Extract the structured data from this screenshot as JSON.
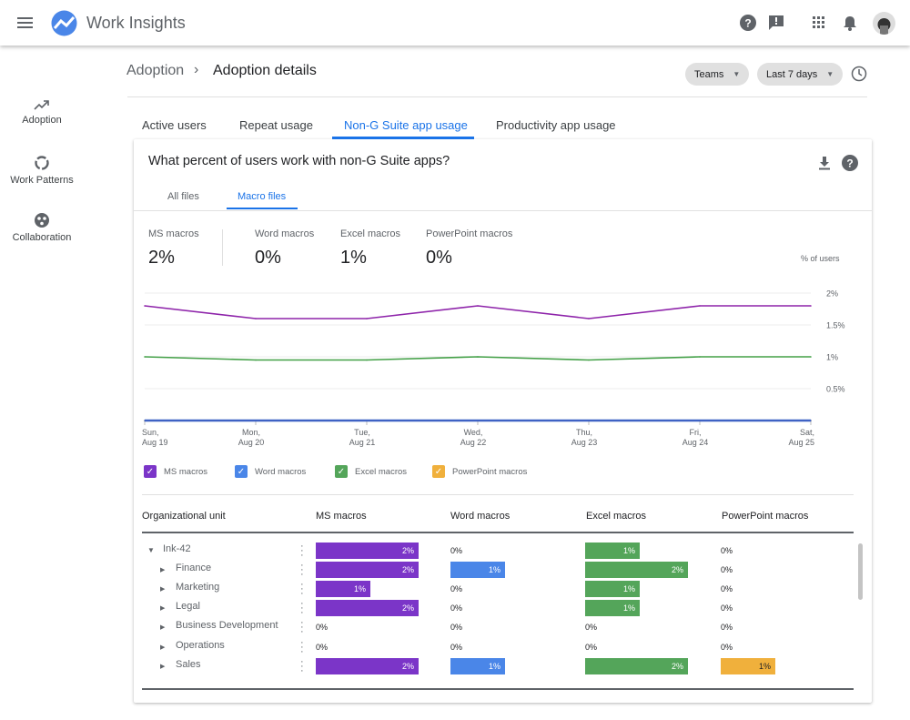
{
  "app": {
    "title": "Work Insights"
  },
  "sidebar": {
    "items": [
      {
        "label": "Adoption",
        "icon": "trending-up-icon"
      },
      {
        "label": "Work Patterns",
        "icon": "circle-progress-icon"
      },
      {
        "label": "Collaboration",
        "icon": "collaboration-icon"
      }
    ]
  },
  "breadcrumb": {
    "parent": "Adoption",
    "current": "Adoption details"
  },
  "filters": {
    "group": "Teams",
    "range": "Last 7 days"
  },
  "tabs": [
    {
      "label": "Active users"
    },
    {
      "label": "Repeat usage"
    },
    {
      "label": "Non-G Suite app usage",
      "active": true
    },
    {
      "label": "Productivity app usage"
    }
  ],
  "card": {
    "title": "What percent of users work with non-G Suite apps?",
    "subtabs": [
      {
        "label": "All files"
      },
      {
        "label": "Macro files",
        "active": true
      }
    ]
  },
  "stats": [
    {
      "label": "MS macros",
      "value": "2%"
    },
    {
      "label": "Word macros",
      "value": "0%"
    },
    {
      "label": "Excel macros",
      "value": "1%"
    },
    {
      "label": "PowerPoint macros",
      "value": "0%"
    }
  ],
  "colors": {
    "ms": "#7b35c8",
    "word": "#4a86e8",
    "excel": "#54a55a",
    "ppt": "#f0b03c",
    "accent": "#1a73e8"
  },
  "chart_data": {
    "type": "line",
    "ylabel": "% of users",
    "x": [
      "Sun, Aug 19",
      "Mon, Aug 20",
      "Tue, Aug 21",
      "Wed, Aug 22",
      "Thu, Aug 23",
      "Fri, Aug 24",
      "Sat, Aug 25"
    ],
    "x_ticks": [
      [
        "Sun,",
        "Aug 19"
      ],
      [
        "Mon,",
        "Aug 20"
      ],
      [
        "Tue,",
        "Aug 21"
      ],
      [
        "Wed,",
        "Aug 22"
      ],
      [
        "Thu,",
        "Aug 23"
      ],
      [
        "Fri,",
        "Aug 24"
      ],
      [
        "Sat,",
        "Aug 25"
      ]
    ],
    "y_ticks": [
      {
        "v": 2,
        "label": "2%"
      },
      {
        "v": 1.5,
        "label": "1.5%"
      },
      {
        "v": 1,
        "label": "1%"
      },
      {
        "v": 0.5,
        "label": "0.5%"
      }
    ],
    "ylim": [
      0,
      2
    ],
    "grid": true,
    "legend": "bottom-left",
    "series": [
      {
        "name": "MS macros",
        "color": "#8e24aa",
        "values": [
          1.8,
          1.6,
          1.6,
          1.8,
          1.6,
          1.8,
          1.8
        ]
      },
      {
        "name": "Word macros",
        "color": "#3f62c4",
        "values": [
          0,
          0,
          0,
          0,
          0,
          0,
          0
        ]
      },
      {
        "name": "Excel macros",
        "color": "#43a047",
        "values": [
          1.0,
          0.95,
          0.95,
          1.0,
          0.95,
          1.0,
          1.0
        ]
      },
      {
        "name": "PowerPoint macros",
        "color": "#f0b03c",
        "values": [
          0,
          0,
          0,
          0,
          0,
          0,
          0
        ]
      }
    ]
  },
  "table": {
    "headers": [
      "Organizational unit",
      "MS macros",
      "Word macros",
      "Excel macros",
      "PowerPoint macros"
    ],
    "rows": [
      {
        "name": "Ink-42",
        "expanded": true,
        "level": 0,
        "values": [
          2,
          0,
          1,
          0
        ],
        "labels": [
          "2%",
          "0%",
          "1%",
          "0%"
        ]
      },
      {
        "name": "Finance",
        "level": 1,
        "values": [
          2,
          1,
          2,
          0
        ],
        "labels": [
          "2%",
          "1%",
          "2%",
          "0%"
        ]
      },
      {
        "name": "Marketing",
        "level": 1,
        "values": [
          1,
          0,
          1,
          0
        ],
        "labels": [
          "1%",
          "0%",
          "1%",
          "0%"
        ]
      },
      {
        "name": "Legal",
        "level": 1,
        "values": [
          2,
          0,
          1,
          0
        ],
        "labels": [
          "2%",
          "0%",
          "1%",
          "0%"
        ]
      },
      {
        "name": "Business Development",
        "level": 1,
        "values": [
          0,
          0,
          0,
          0
        ],
        "labels": [
          "0%",
          "0%",
          "0%",
          "0%"
        ]
      },
      {
        "name": "Operations",
        "level": 1,
        "values": [
          0,
          0,
          0,
          0
        ],
        "labels": [
          "0%",
          "0%",
          "0%",
          "0%"
        ]
      },
      {
        "name": "Sales",
        "level": 1,
        "values": [
          2,
          1,
          2,
          1
        ],
        "labels": [
          "2%",
          "1%",
          "2%",
          "1%"
        ]
      }
    ]
  }
}
